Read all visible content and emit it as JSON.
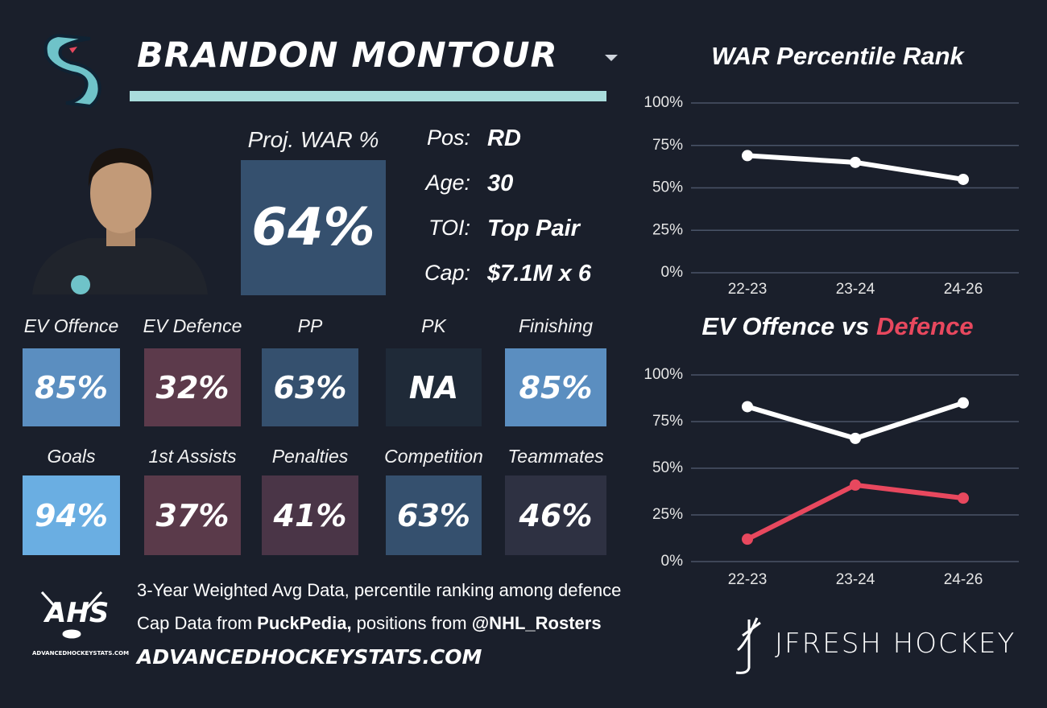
{
  "header": {
    "name": "BRANDON MONTOUR"
  },
  "projection": {
    "label": "Proj. WAR %",
    "value": "64%",
    "color": "#35506e"
  },
  "info": [
    {
      "label": "Pos:",
      "value": "RD"
    },
    {
      "label": "Age:",
      "value": "30"
    },
    {
      "label": "TOI:",
      "value": "Top Pair"
    },
    {
      "label": "Cap:",
      "value": "$7.1M x 6"
    }
  ],
  "tiles": [
    {
      "label": "EV Offence",
      "value": "85%",
      "color": "#5b8ec0"
    },
    {
      "label": "EV Defence",
      "value": "32%",
      "color": "#5c3a4b"
    },
    {
      "label": "PP",
      "value": "63%",
      "color": "#35506e"
    },
    {
      "label": "PK",
      "value": "NA",
      "color": "#1f2a38"
    },
    {
      "label": "Finishing",
      "value": "85%",
      "color": "#5b8ec0"
    },
    {
      "label": "Goals",
      "value": "94%",
      "color": "#6aaee2"
    },
    {
      "label": "1st Assists",
      "value": "37%",
      "color": "#5a3a4a"
    },
    {
      "label": "Penalties",
      "value": "41%",
      "color": "#4a3547"
    },
    {
      "label": "Competition",
      "value": "63%",
      "color": "#35506e"
    },
    {
      "label": "Teammates",
      "value": "46%",
      "color": "#2e3142"
    }
  ],
  "footer": {
    "logo": "AHS",
    "logo_caption": "ADVANCEDHOCKEYSTATS.COM",
    "line1": "3-Year Weighted Avg Data, percentile ranking among defence",
    "line2": [
      {
        "text": "Cap Data from ",
        "bold": false
      },
      {
        "text": "PuckPedia,",
        "bold": true
      },
      {
        "text": " positions from ",
        "bold": false
      },
      {
        "text": "@NHL_Rosters",
        "bold": true
      }
    ],
    "site": "ADVANCEDHOCKEYSTATS.COM",
    "brand": "JFRESH HOCKEY"
  },
  "charts": [
    {
      "type": "line",
      "title": "WAR Percentile Rank",
      "categories": [
        "22-23",
        "23-24",
        "24-26"
      ],
      "series": [
        {
          "color": "#ffffff",
          "values": [
            69,
            65,
            55
          ]
        }
      ],
      "ylim": [
        0,
        100
      ],
      "yticks": [
        {
          "value": 0,
          "label": "0%"
        },
        {
          "value": 25,
          "label": "25%"
        },
        {
          "value": 50,
          "label": "50%"
        },
        {
          "value": 75,
          "label": "75%"
        },
        {
          "value": 100,
          "label": "100%"
        }
      ],
      "grid": true
    },
    {
      "type": "line",
      "title": [
        {
          "text": "EV Offence vs ",
          "color": "#ffffff"
        },
        {
          "text": "Defence",
          "color": "#e8485e"
        }
      ],
      "categories": [
        "22-23",
        "23-24",
        "24-26"
      ],
      "series": [
        {
          "color": "#ffffff",
          "values": [
            83,
            66,
            85
          ]
        },
        {
          "color": "#e8485e",
          "values": [
            12,
            41,
            34
          ]
        }
      ],
      "ylim": [
        0,
        100
      ],
      "yticks": [
        {
          "value": 0,
          "label": "0%"
        },
        {
          "value": 25,
          "label": "25%"
        },
        {
          "value": 50,
          "label": "50%"
        },
        {
          "value": 75,
          "label": "75%"
        },
        {
          "value": 100,
          "label": "100%"
        }
      ],
      "grid": true
    }
  ]
}
